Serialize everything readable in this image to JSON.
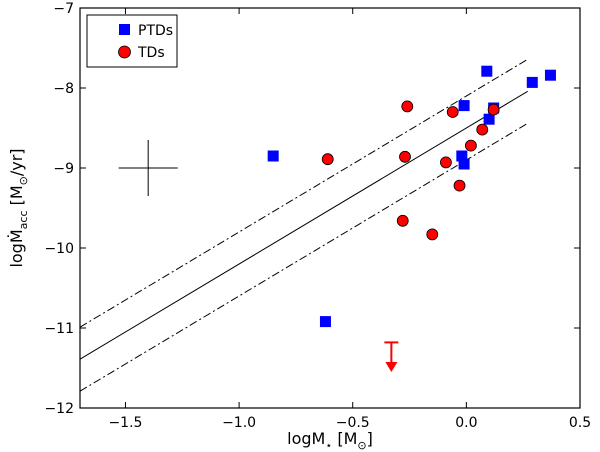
{
  "chart_data": {
    "type": "scatter",
    "xlabel_main": "logM",
    "xlabel_sub": "⋆",
    "xlabel_unit": " [M",
    "xlabel_unit_sub": "⊙",
    "xlabel_close": "]",
    "ylabel_main": "log",
    "ylabel_var": "Ṁ",
    "ylabel_sub": "acc",
    "ylabel_unit": " [M",
    "ylabel_unit_sub": "⊙",
    "ylabel_close": "/yr]",
    "xlim": [
      -1.7,
      0.5
    ],
    "ylim": [
      -12,
      -7
    ],
    "xticks": [
      -1.5,
      -1.0,
      -0.5,
      0.0,
      0.5
    ],
    "xtick_labels": [
      "−1.5",
      "−1.0",
      "−0.5",
      "0.0",
      "0.5"
    ],
    "yticks": [
      -12,
      -11,
      -10,
      -9,
      -8,
      -7
    ],
    "ytick_labels": [
      "−12",
      "−11",
      "−10",
      "−9",
      "−8",
      "−7"
    ],
    "grid": false,
    "legend_position": "top-left",
    "series": [
      {
        "name": "PTDs",
        "marker": "square",
        "color": "#0000ff",
        "points": [
          [
            -0.85,
            -8.85
          ],
          [
            -0.62,
            -10.92
          ],
          [
            -0.02,
            -8.85
          ],
          [
            -0.01,
            -8.22
          ],
          [
            -0.01,
            -8.95
          ],
          [
            0.09,
            -7.79
          ],
          [
            0.1,
            -8.39
          ],
          [
            0.12,
            -8.25
          ],
          [
            0.29,
            -7.93
          ],
          [
            0.37,
            -7.84
          ]
        ]
      },
      {
        "name": "TDs",
        "marker": "circle",
        "color": "#ff0000",
        "points": [
          [
            -0.61,
            -8.89
          ],
          [
            -0.26,
            -8.23
          ],
          [
            -0.27,
            -8.86
          ],
          [
            -0.28,
            -9.66
          ],
          [
            -0.15,
            -9.83
          ],
          [
            -0.09,
            -8.93
          ],
          [
            -0.06,
            -8.3
          ],
          [
            -0.03,
            -9.22
          ],
          [
            0.02,
            -8.72
          ],
          [
            0.07,
            -8.52
          ],
          [
            0.12,
            -8.27
          ]
        ]
      }
    ],
    "upper_limit": {
      "x": -0.33,
      "y_top": -11.18,
      "y_bottom": -11.55,
      "color": "#ff0000"
    },
    "error_cross": {
      "x": -1.4,
      "y": -9.0,
      "dx": 0.13,
      "dy": 0.35
    },
    "fit_line": {
      "slope": 1.7,
      "intercept": -8.5
    },
    "fit_bounds": {
      "slope": 1.7,
      "offset": 0.4
    }
  }
}
